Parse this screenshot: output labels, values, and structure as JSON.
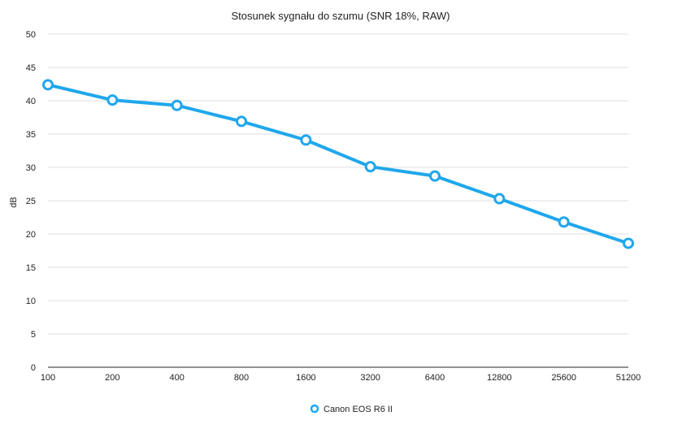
{
  "chart_data": {
    "type": "line",
    "title": "Stosunek sygnału do szumu (SNR 18%, RAW)",
    "xlabel": "",
    "ylabel": "dB",
    "categories": [
      "100",
      "200",
      "400",
      "800",
      "1600",
      "3200",
      "6400",
      "12800",
      "25600",
      "51200"
    ],
    "series": [
      {
        "name": "Canon EOS R6 II",
        "values": [
          42.4,
          40.1,
          39.3,
          36.9,
          34.1,
          30.1,
          28.7,
          25.3,
          21.8,
          18.6
        ]
      }
    ],
    "ylim": [
      0,
      50
    ],
    "yticks": [
      0,
      5,
      10,
      15,
      20,
      25,
      30,
      35,
      40,
      45,
      50
    ],
    "grid": true,
    "legend_position": "bottom",
    "colors": {
      "series": "#1fa7ec",
      "grid": "#d4d4d4",
      "axis": "#222222"
    }
  }
}
